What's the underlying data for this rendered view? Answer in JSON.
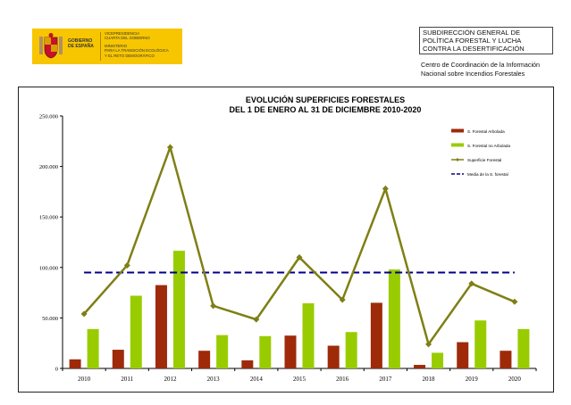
{
  "header": {
    "logo": {
      "gobierno": "GOBIERNO\nDE ESPAÑA",
      "vice_lines": [
        "VICEPRESIDENCIA",
        "CUARTA DEL GOBIERNO"
      ],
      "ministerio_lines": [
        "MINISTERIO",
        "PARA LA TRANSICIÓN ECOLÓGICA",
        "Y EL RETO DEMOGRÁFICO"
      ],
      "logo_color": "#f7c600"
    },
    "subdireccion": "SUBDIRECCIÓN GENERAL DE POLÍTICA FORESTAL Y LUCHA CONTRA LA DESERTIFICACIÓN",
    "centro": "Centro de Coordinación de la Información Nacional sobre Incendios Forestales"
  },
  "chart_data": {
    "type": "bar",
    "title_lines": [
      "EVOLUCIÓN SUPERFICIES FORESTALES",
      "DEL 1 DE ENERO AL 31 DE DICIEMBRE 2010-2020"
    ],
    "categories": [
      "2010",
      "2011",
      "2012",
      "2013",
      "2014",
      "2015",
      "2016",
      "2017",
      "2018",
      "2019",
      "2020"
    ],
    "series": [
      {
        "name": "S. Forestal Arbolada",
        "kind": "bar",
        "color": "#9e2a0a",
        "values": [
          9000,
          18500,
          82500,
          17500,
          8000,
          32500,
          22500,
          65000,
          3500,
          26000,
          17500
        ]
      },
      {
        "name": "S. Forestal no Arbolada",
        "kind": "bar",
        "color": "#99cc00",
        "values": [
          39000,
          72000,
          116500,
          33000,
          32000,
          64500,
          36000,
          98000,
          15500,
          47500,
          39000
        ]
      },
      {
        "name": "Superficie Forestal",
        "kind": "line",
        "color": "#7f7f16",
        "values": [
          54000,
          102000,
          219000,
          62000,
          48500,
          110000,
          68000,
          178000,
          24000,
          84000,
          66000
        ]
      },
      {
        "name": "Media de la S. forestal",
        "kind": "mean",
        "color": "#00008b",
        "value": 95000
      }
    ],
    "y_ticks": [
      "0",
      "50.000",
      "100.000",
      "150.000",
      "200.000",
      "250.000"
    ],
    "y_tick_values": [
      0,
      50000,
      100000,
      150000,
      200000,
      250000
    ],
    "ylim": [
      0,
      250000
    ],
    "xlabel": "",
    "ylabel": "",
    "legend_position": "top-right",
    "grid": false
  }
}
